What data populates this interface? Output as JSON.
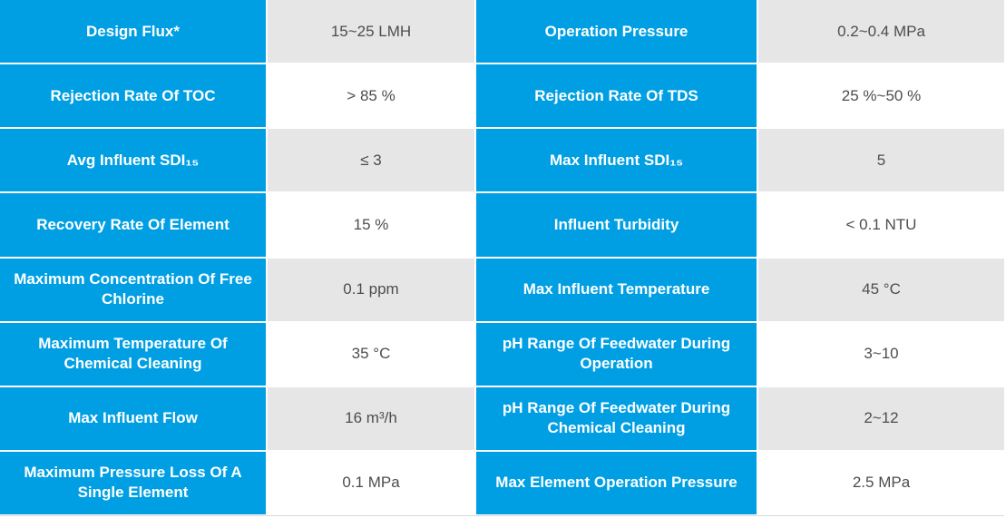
{
  "theme": {
    "accent_color": "#009fe3",
    "alt_row_color": "#e6e6e6",
    "value_text_color": "#4d4d4d",
    "label_text_color": "#ffffff",
    "hairline_color": "#d8d8d8"
  },
  "table": {
    "rows": [
      {
        "left": {
          "label": "Design Flux*",
          "value": "15~25 LMH"
        },
        "right": {
          "label": "Operation Pressure",
          "value": "0.2~0.4 MPa"
        }
      },
      {
        "left": {
          "label": "Rejection Rate Of TOC",
          "value": "> 85 %"
        },
        "right": {
          "label": "Rejection Rate Of TDS",
          "value": "25 %~50 %"
        }
      },
      {
        "left": {
          "label": "Avg Influent SDI₁₅",
          "value": "≤ 3"
        },
        "right": {
          "label": "Max Influent SDI₁₅",
          "value": "5"
        }
      },
      {
        "left": {
          "label": "Recovery Rate Of Element",
          "value": "15 %"
        },
        "right": {
          "label": "Influent Turbidity",
          "value": "< 0.1 NTU"
        }
      },
      {
        "left": {
          "label": "Maximum Concentration Of Free Chlorine",
          "value": "0.1 ppm"
        },
        "right": {
          "label": "Max Influent Temperature",
          "value": "45 °C"
        }
      },
      {
        "left": {
          "label": "Maximum Temperature Of Chemical Cleaning",
          "value": "35 °C"
        },
        "right": {
          "label": "pH Range Of Feedwater During Operation",
          "value": "3~10"
        }
      },
      {
        "left": {
          "label": "Max Influent Flow",
          "value": "16 m³/h"
        },
        "right": {
          "label": "pH Range Of Feedwater During Chemical Cleaning",
          "value": "2~12"
        }
      },
      {
        "left": {
          "label": "Maximum Pressure Loss Of A Single Element",
          "value": "0.1 MPa"
        },
        "right": {
          "label": "Max Element Operation Pressure",
          "value": "2.5 MPa"
        }
      }
    ]
  }
}
